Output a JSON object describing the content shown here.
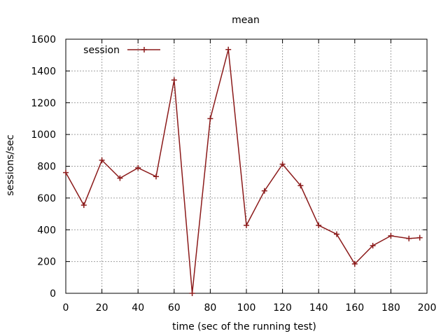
{
  "chart_data": {
    "type": "line",
    "title": "mean",
    "xlabel": "time (sec of the running test)",
    "ylabel": "sessions/sec",
    "xlim": [
      0,
      200
    ],
    "ylim": [
      0,
      1600
    ],
    "xticks": [
      0,
      20,
      40,
      60,
      80,
      100,
      120,
      140,
      160,
      180,
      200
    ],
    "yticks": [
      0,
      200,
      400,
      600,
      800,
      1000,
      1200,
      1400,
      1600
    ],
    "grid": true,
    "legend_position": "top-left",
    "series": [
      {
        "name": "session",
        "color": "#8b1a1a",
        "marker": "plus",
        "x": [
          0,
          10,
          20,
          30,
          40,
          50,
          60,
          70,
          80,
          90,
          100,
          110,
          120,
          130,
          140,
          150,
          160,
          170,
          180,
          190,
          196
        ],
        "y": [
          760,
          555,
          838,
          725,
          790,
          735,
          1343,
          0,
          1100,
          1535,
          428,
          645,
          813,
          678,
          428,
          372,
          185,
          300,
          362,
          345,
          350
        ]
      }
    ]
  }
}
